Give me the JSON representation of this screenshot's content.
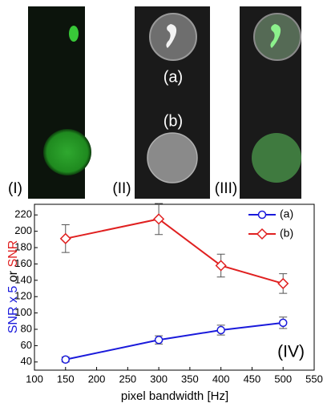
{
  "panels": {
    "labels": [
      "(I)",
      "(II)",
      "(III)"
    ],
    "sublabels": [
      "(a)",
      "(b)"
    ]
  },
  "chart_data": {
    "type": "line",
    "annotation": "(IV)",
    "xlabel": "pixel bandwidth [Hz]",
    "ylabel_parts": [
      {
        "text": "SNR x 5",
        "color": "#1a1adb"
      },
      {
        "text": "or",
        "color": "#000000"
      },
      {
        "text": "SNR",
        "color": "#e02020"
      }
    ],
    "x": [
      150,
      300,
      400,
      500
    ],
    "series": [
      {
        "name": "(a)",
        "color": "#1a1adb",
        "marker": "circle",
        "values": [
          43,
          67,
          79,
          88
        ],
        "errors": [
          3,
          5,
          6,
          7
        ]
      },
      {
        "name": "(b)",
        "color": "#e02020",
        "marker": "diamond",
        "values": [
          191,
          215,
          158,
          136
        ],
        "errors": [
          17,
          19,
          14,
          12
        ]
      }
    ],
    "xlim": [
      100,
      550
    ],
    "xticks": [
      100,
      150,
      200,
      250,
      300,
      350,
      400,
      450,
      500,
      550
    ],
    "ylim": [
      30,
      233
    ],
    "yticks": [
      40,
      60,
      80,
      100,
      120,
      140,
      160,
      180,
      200,
      220
    ],
    "legend": "upper-right"
  }
}
